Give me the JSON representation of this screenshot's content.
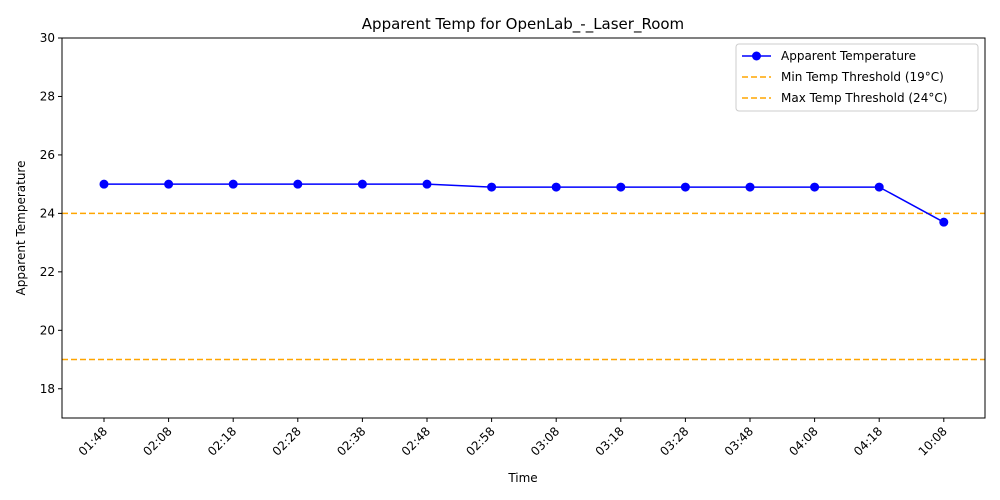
{
  "chart_data": {
    "type": "line",
    "title": "Apparent Temp for OpenLab_-_Laser_Room",
    "xlabel": "Time",
    "ylabel": "Apparent Temperature",
    "categories": [
      "01:48",
      "02:08",
      "02:18",
      "02:28",
      "02:38",
      "02:48",
      "02:58",
      "03:08",
      "03:18",
      "03:28",
      "03:48",
      "04:08",
      "04:18",
      "10:08"
    ],
    "series": [
      {
        "name": "Apparent Temperature",
        "color": "#0000ff",
        "values": [
          25.0,
          25.0,
          25.0,
          25.0,
          25.0,
          25.0,
          24.9,
          24.9,
          24.9,
          24.9,
          24.9,
          24.9,
          24.9,
          23.7
        ]
      }
    ],
    "thresholds": [
      {
        "name": "Min Temp Threshold (19°C)",
        "value": 19,
        "color": "#ffa500",
        "style": "dashed"
      },
      {
        "name": "Max Temp Threshold (24°C)",
        "value": 24,
        "color": "#ffa500",
        "style": "dashed"
      }
    ],
    "ylim": [
      17,
      30
    ],
    "yticks": [
      18,
      20,
      22,
      24,
      26,
      28,
      30
    ],
    "grid": false,
    "legend_position": "top-right",
    "x_tick_rotation": 45
  }
}
